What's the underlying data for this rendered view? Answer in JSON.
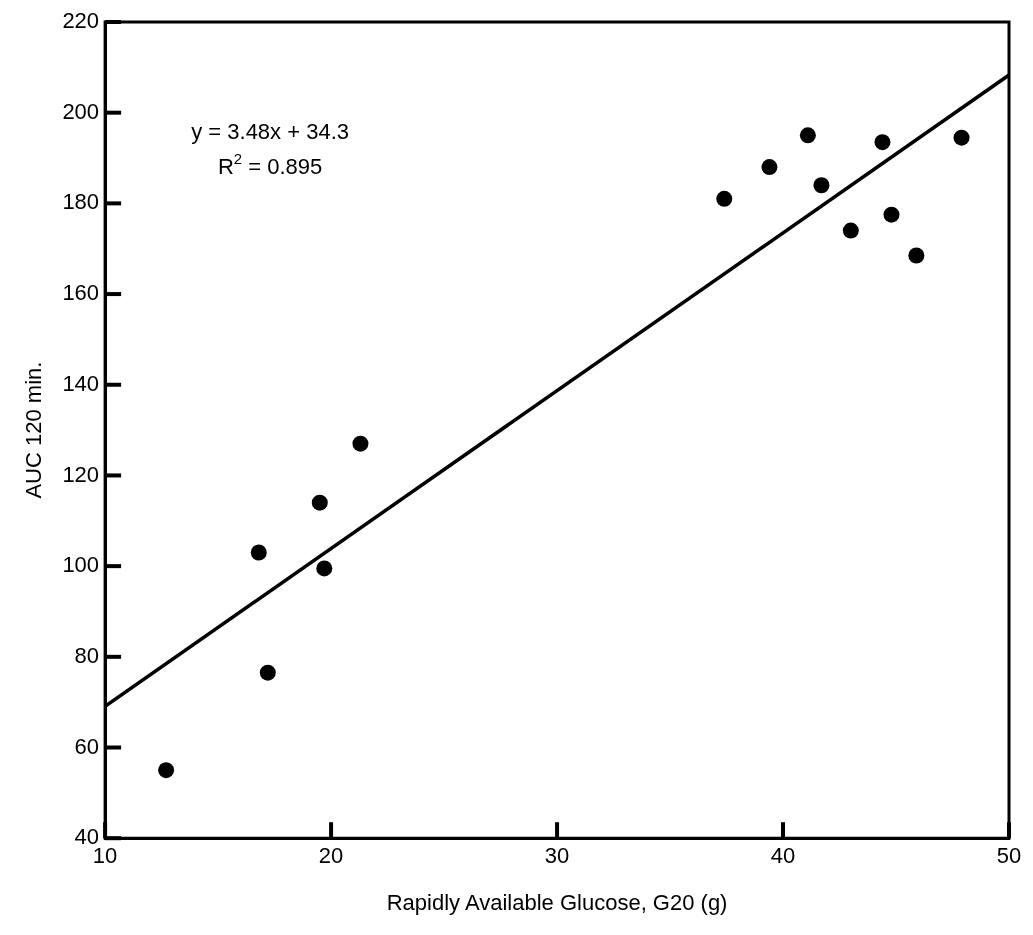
{
  "chart_data": {
    "type": "scatter",
    "xlabel": "Rapidly Available Glucose, G20 (g)",
    "ylabel": "AUC 120 min.",
    "xlim": [
      10,
      50
    ],
    "ylim": [
      40,
      220
    ],
    "xticks": [
      10,
      20,
      30,
      40,
      50
    ],
    "yticks": [
      40,
      60,
      80,
      100,
      120,
      140,
      160,
      180,
      200,
      220
    ],
    "grid": false,
    "legend": false,
    "marker": "circle",
    "series": [
      {
        "type": "scatter",
        "color": "#000000",
        "x": [
          12.7,
          16.8,
          17.2,
          19.5,
          19.7,
          21.3,
          37.4,
          39.4,
          41.1,
          41.7,
          43.0,
          44.4,
          44.8,
          45.9,
          47.9
        ],
        "values": [
          55,
          103,
          76.5,
          114,
          99.5,
          127,
          181,
          188,
          195,
          184,
          174,
          193.5,
          177.5,
          168.5,
          194.5
        ]
      },
      {
        "type": "line",
        "color": "#000000",
        "x": [
          10,
          50
        ],
        "values": [
          69.1,
          208.3
        ],
        "marker": "none",
        "line_style": "solid"
      }
    ],
    "annotations": [
      "y = 3.48x + 34.3",
      "R$^{2}$ = 0.895"
    ]
  }
}
